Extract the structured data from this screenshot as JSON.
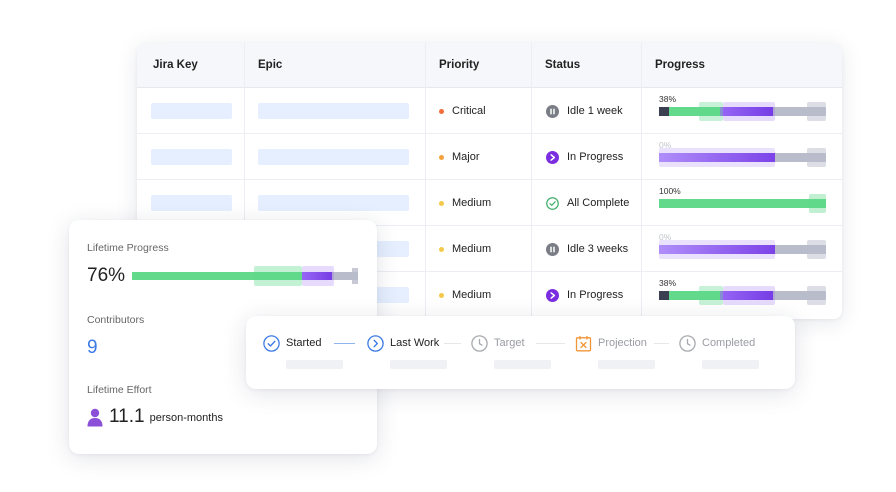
{
  "table": {
    "headers": [
      "Jira Key",
      "Epic",
      "Priority",
      "Status",
      "Progress"
    ],
    "rows": [
      {
        "priority": "Critical",
        "priority_color": "#f26b3a",
        "status": "Idle 1 week",
        "status_icon": "pause-icon",
        "progress_label": "38%",
        "progress": 0.38
      },
      {
        "priority": "Major",
        "priority_color": "#f5a23a",
        "status": "In Progress",
        "status_icon": "play-icon",
        "progress_label": "0%",
        "progress": 0.0
      },
      {
        "priority": "Medium",
        "priority_color": "#f4c94a",
        "status": "All Complete",
        "status_icon": "check-circle-icon",
        "progress_label": "100%",
        "progress": 1.0
      },
      {
        "priority": "Medium",
        "priority_color": "#f4c94a",
        "status": "Idle 3 weeks",
        "status_icon": "pause-icon",
        "progress_label": "0%",
        "progress": 0.0
      },
      {
        "priority": "Medium",
        "priority_color": "#f4c94a",
        "status": "In Progress",
        "status_icon": "play-icon",
        "progress_label": "38%",
        "progress": 0.38
      }
    ]
  },
  "lifetime": {
    "progress_label": "Lifetime Progress",
    "progress_value": "76%",
    "progress": 0.76,
    "contributors_label": "Contributors",
    "contributors_value": "9",
    "effort_label": "Lifetime Effort",
    "effort_value": "11.1",
    "effort_unit": "person-months",
    "effort_icon": "person-icon"
  },
  "timeline": {
    "steps": [
      {
        "label": "Started",
        "icon": "check-circle-icon"
      },
      {
        "label": "Last Work",
        "icon": "chevron-circle-icon"
      },
      {
        "label": "Target",
        "icon": "clock-icon"
      },
      {
        "label": "Projection",
        "icon": "calendar-x-icon"
      },
      {
        "label": "Completed",
        "icon": "clock-icon"
      }
    ]
  },
  "colors": {
    "green": "#62d98b",
    "purple": "#8b5cf6",
    "track": "#b9bccb",
    "blue": "#3d7be5",
    "orange": "#f0963a"
  }
}
